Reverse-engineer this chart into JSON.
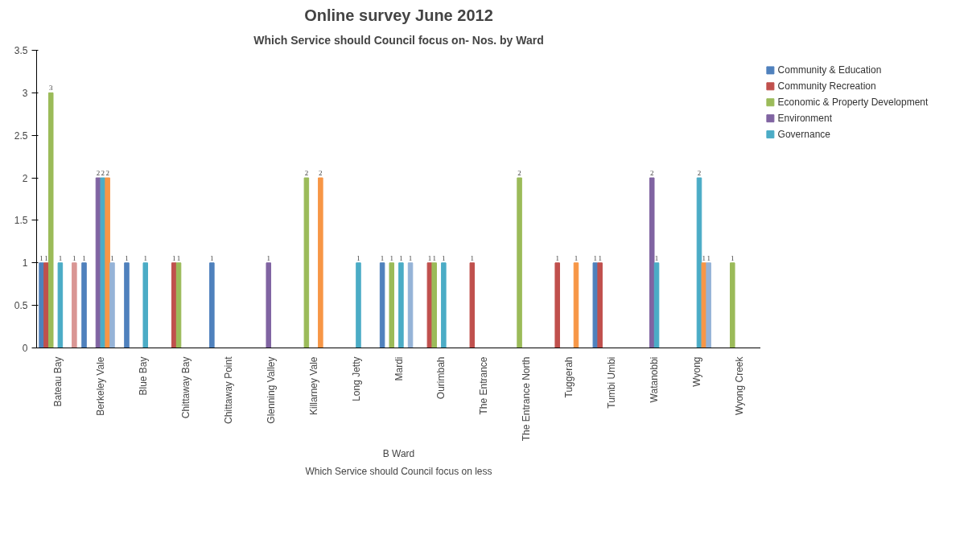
{
  "chart_data": {
    "type": "bar",
    "title": "Online survey June 2012",
    "subtitle": "Which Service should Council focus on- Nos. by Ward",
    "xlabel": "Which Service should Council focus on less",
    "annotations": [
      "B Ward"
    ],
    "categories": [
      "Bateau Bay",
      "Berkeley Vale",
      "Blue Bay",
      "Chittaway Bay",
      "Chittaway Point",
      "Glenning Valley",
      "Killarney Vale",
      "Long Jetty",
      "Mardi",
      "Ourimbah",
      "The Entrance",
      "The Entrance North",
      "Tuggerah",
      "Tumbi Umbi",
      "Watanobbi",
      "Wyong",
      "Wyong Creek"
    ],
    "series": [
      {
        "name": "Community & Education",
        "color": "#4f81bd",
        "values": [
          1,
          1,
          1,
          null,
          1,
          null,
          null,
          null,
          1,
          null,
          null,
          null,
          null,
          1,
          null,
          null,
          null
        ]
      },
      {
        "name": "Community Recreation",
        "color": "#c0504d",
        "values": [
          1,
          null,
          null,
          1,
          null,
          null,
          null,
          null,
          null,
          1,
          1,
          null,
          1,
          1,
          null,
          null,
          null
        ]
      },
      {
        "name": "Economic & Property Development",
        "color": "#9bbb59",
        "values": [
          3,
          null,
          null,
          1,
          null,
          null,
          2,
          null,
          1,
          1,
          null,
          2,
          null,
          null,
          null,
          null,
          1
        ]
      },
      {
        "name": "Environment",
        "color": "#8064a2",
        "values": [
          null,
          2,
          null,
          null,
          null,
          1,
          null,
          null,
          null,
          null,
          null,
          null,
          null,
          null,
          2,
          null,
          null
        ]
      },
      {
        "name": "Governance",
        "color": "#4bacc6",
        "values": [
          1,
          2,
          1,
          null,
          null,
          null,
          null,
          1,
          1,
          1,
          null,
          null,
          null,
          null,
          1,
          2,
          null
        ]
      },
      {
        "color": "#f79646",
        "values": [
          null,
          2,
          null,
          null,
          null,
          null,
          2,
          null,
          null,
          null,
          null,
          null,
          1,
          null,
          null,
          1,
          null
        ]
      },
      {
        "color": "#95b3d7",
        "values": [
          null,
          1,
          null,
          null,
          null,
          null,
          null,
          null,
          1,
          null,
          null,
          null,
          null,
          null,
          null,
          1,
          null
        ]
      },
      {
        "color": "#d99694",
        "values": [
          1,
          null,
          null,
          null,
          null,
          null,
          null,
          null,
          null,
          null,
          null,
          null,
          null,
          null,
          null,
          null,
          null
        ]
      }
    ],
    "ylim": [
      0,
      3.5
    ],
    "yticks": [
      0,
      0.5,
      1,
      1.5,
      2,
      2.5,
      3,
      3.5
    ],
    "grid": false,
    "legend": "top right",
    "data_labels": true
  }
}
